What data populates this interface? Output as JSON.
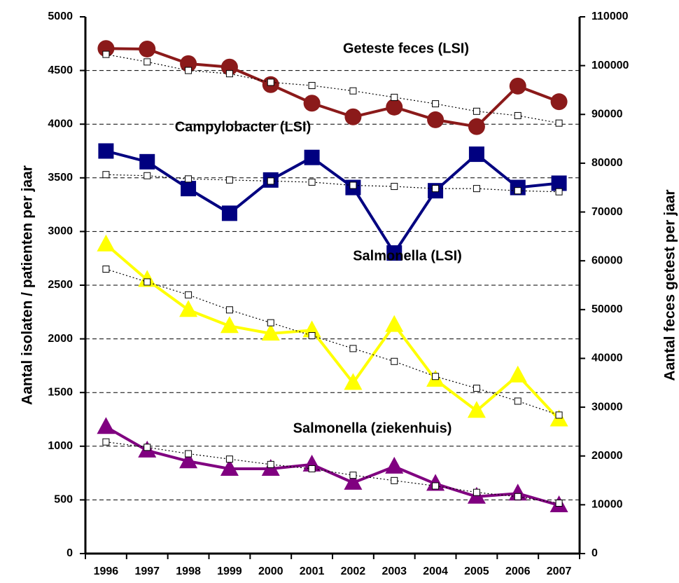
{
  "chart_data": {
    "type": "line",
    "y_label": "Aantal isolaten / patienten per jaar",
    "y2_label": "Aantal feces getest per jaar",
    "categories": [
      "1996",
      "1997",
      "1998",
      "1999",
      "2000",
      "2001",
      "2002",
      "2003",
      "2004",
      "2005",
      "2006",
      "2007"
    ],
    "ylim": [
      0,
      5000
    ],
    "yticks": [
      0,
      500,
      1000,
      1500,
      2000,
      2500,
      3000,
      3500,
      4000,
      4500,
      5000
    ],
    "y2lim": [
      0,
      110000
    ],
    "y2ticks": [
      0,
      10000,
      20000,
      30000,
      40000,
      50000,
      60000,
      70000,
      80000,
      90000,
      100000,
      110000
    ],
    "grid": true,
    "series": [
      {
        "name": "Geteste feces (LSI)",
        "color": "#8b1a1a",
        "marker": "circle",
        "axis": "y2",
        "values": [
          103500,
          103400,
          100400,
          99700,
          96100,
          92300,
          89500,
          91500,
          88900,
          87500,
          95800,
          92600
        ]
      },
      {
        "name": "Campylobacter (LSI)",
        "color": "#000080",
        "marker": "square",
        "values": [
          3750,
          3650,
          3400,
          3170,
          3480,
          3690,
          3410,
          2800,
          3380,
          3720,
          3410,
          3450
        ]
      },
      {
        "name": "Salmonella (LSI)",
        "color": "#ffff00",
        "marker": "triangle",
        "values": [
          2880,
          2550,
          2270,
          2120,
          2050,
          2080,
          1590,
          2130,
          1620,
          1330,
          1660,
          1250
        ]
      },
      {
        "name": "Salmonella (ziekenhuis)",
        "color": "#800080",
        "marker": "triangle",
        "values": [
          1180,
          960,
          860,
          790,
          790,
          830,
          660,
          810,
          650,
          530,
          560,
          450
        ]
      },
      {
        "color": "#000000",
        "marker": "open-square",
        "style": "dotted",
        "axis": "y2",
        "values": [
          102300,
          100760,
          99000,
          98340,
          96580,
          95920,
          94820,
          93500,
          92180,
          90640,
          89760,
          88220
        ]
      },
      {
        "color": "#000000",
        "marker": "open-square",
        "style": "dotted",
        "values": [
          3530,
          3520,
          3490,
          3480,
          3470,
          3460,
          3430,
          3420,
          3400,
          3400,
          3380,
          3370
        ]
      },
      {
        "color": "#000000",
        "marker": "open-square",
        "style": "dotted",
        "values": [
          2650,
          2530,
          2410,
          2270,
          2150,
          2030,
          1910,
          1790,
          1650,
          1540,
          1420,
          1290
        ]
      },
      {
        "color": "#000000",
        "marker": "open-square",
        "style": "dotted",
        "values": [
          1040,
          990,
          930,
          880,
          830,
          790,
          730,
          680,
          630,
          570,
          530,
          470
        ]
      }
    ]
  }
}
